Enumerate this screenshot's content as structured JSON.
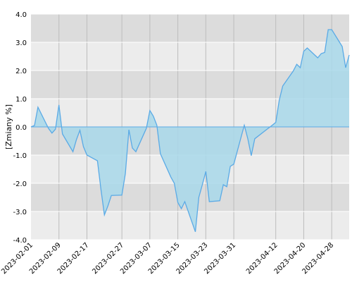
{
  "chart_data": {
    "type": "area",
    "title": "",
    "xlabel": "",
    "ylabel": "[Zmiany %]",
    "ylim": [
      -4.0,
      4.0
    ],
    "ytick_labels": [
      "4.0",
      "3.0",
      "2.0",
      "1.0",
      "0.0",
      "-1.0",
      "-2.0",
      "-3.0",
      "-4.0"
    ],
    "yticks": [
      4,
      3,
      2,
      1,
      0,
      -1,
      -2,
      -3,
      -4
    ],
    "xlim": [
      "2023-02-01",
      "2023-05-03"
    ],
    "xtick_labels": [
      "2023-02-01",
      "2023-02-09",
      "2023-02-17",
      "2023-02-27",
      "2023-03-07",
      "2023-03-15",
      "2023-03-23",
      "2023-03-31",
      "2023-04-12",
      "2023-04-20",
      "2023-04-28"
    ],
    "grid": true,
    "colors": {
      "line": "#5aaae6",
      "fill": "#a8d8ea",
      "band_dark": "#dcdcdc",
      "band_light": "#ececec",
      "grid": "#ffffff",
      "vgrid": "#bdbdbd"
    },
    "series": [
      {
        "x": [
          "2023-02-01",
          "2023-02-02",
          "2023-02-03",
          "2023-02-06",
          "2023-02-07",
          "2023-02-08",
          "2023-02-09",
          "2023-02-10",
          "2023-02-13",
          "2023-02-14",
          "2023-02-15",
          "2023-02-16",
          "2023-02-17",
          "2023-02-20",
          "2023-02-21",
          "2023-02-22",
          "2023-02-23",
          "2023-02-24",
          "2023-02-27",
          "2023-02-28",
          "2023-03-01",
          "2023-03-02",
          "2023-03-03",
          "2023-03-06",
          "2023-03-07",
          "2023-03-08",
          "2023-03-09",
          "2023-03-10",
          "2023-03-13",
          "2023-03-14",
          "2023-03-15",
          "2023-03-16",
          "2023-03-17",
          "2023-03-20",
          "2023-03-21",
          "2023-03-22",
          "2023-03-23",
          "2023-03-24",
          "2023-03-27",
          "2023-03-28",
          "2023-03-29",
          "2023-03-30",
          "2023-03-31",
          "2023-04-03",
          "2023-04-04",
          "2023-04-05",
          "2023-04-06",
          "2023-04-11",
          "2023-04-12",
          "2023-04-13",
          "2023-04-14",
          "2023-04-17",
          "2023-04-18",
          "2023-04-19",
          "2023-04-20",
          "2023-04-21",
          "2023-04-24",
          "2023-04-25",
          "2023-04-26",
          "2023-04-27",
          "2023-04-28",
          "2023-05-01",
          "2023-05-02",
          "2023-05-03"
        ],
        "values": [
          0.0,
          0.05,
          0.7,
          -0.05,
          -0.22,
          -0.08,
          0.78,
          -0.25,
          -0.88,
          -0.45,
          -0.12,
          -0.7,
          -1.0,
          -1.2,
          -2.2,
          -3.12,
          -2.8,
          -2.43,
          -2.42,
          -1.65,
          -0.1,
          -0.75,
          -0.88,
          -0.05,
          0.58,
          0.38,
          0.06,
          -0.95,
          -1.78,
          -2.0,
          -2.68,
          -2.9,
          -2.65,
          -3.72,
          -2.5,
          -2.05,
          -1.58,
          -2.65,
          -2.62,
          -2.05,
          -2.12,
          -1.4,
          -1.32,
          0.06,
          -0.42,
          -1.02,
          -0.42,
          0.06,
          0.16,
          0.95,
          1.45,
          1.98,
          2.22,
          2.1,
          2.68,
          2.8,
          2.45,
          2.6,
          2.64,
          3.45,
          3.45,
          2.85,
          2.1,
          2.55
        ]
      }
    ]
  }
}
